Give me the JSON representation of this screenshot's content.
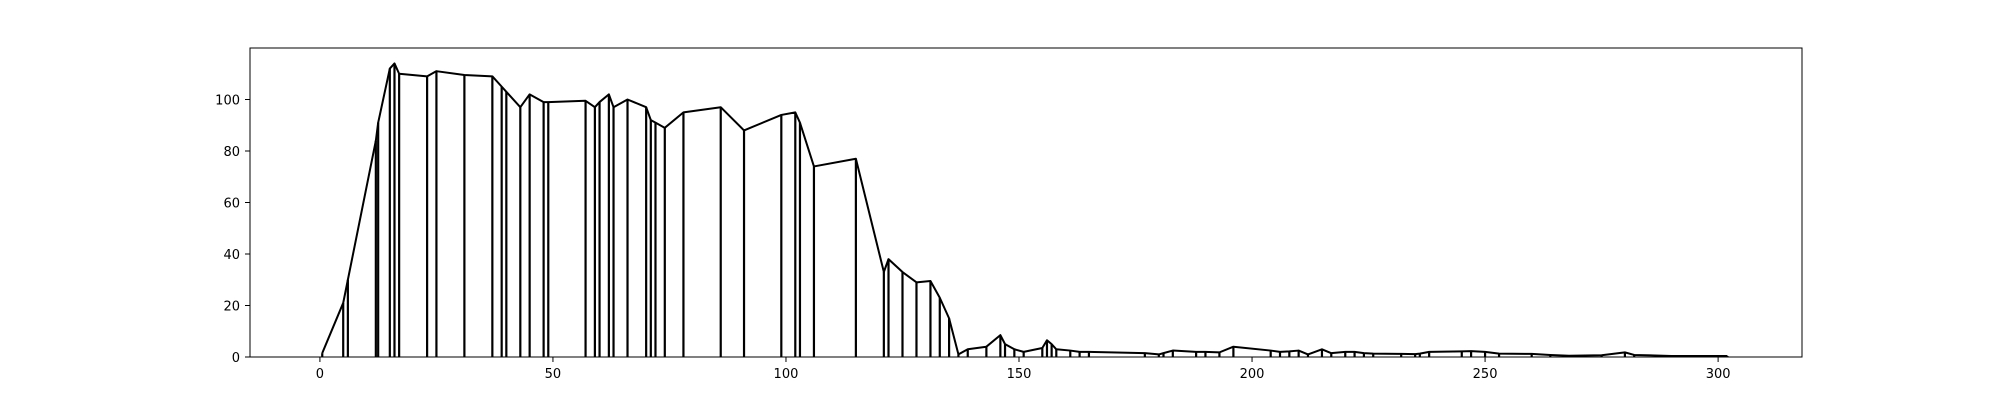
{
  "chart_data": {
    "type": "line",
    "title": "",
    "xlabel": "",
    "ylabel": "",
    "xlim": [
      -15,
      318
    ],
    "ylim": [
      0,
      120
    ],
    "grid": false,
    "legend": "none",
    "line_color": "#000000",
    "x_ticks": [
      0,
      50,
      100,
      150,
      200,
      250,
      300
    ],
    "y_ticks": [
      0,
      20,
      40,
      60,
      80,
      100
    ],
    "x_tick_labels": [
      "0",
      "50",
      "100",
      "150",
      "200",
      "250",
      "300"
    ],
    "y_tick_labels": [
      "0",
      "20",
      "40",
      "60",
      "80",
      "100"
    ],
    "series": [
      {
        "points": [
          [
            0.5,
            1.5
          ],
          [
            5,
            21
          ],
          [
            6,
            30
          ],
          [
            12,
            84
          ],
          [
            12.5,
            91
          ],
          [
            15,
            112
          ],
          [
            16,
            114
          ],
          [
            17,
            110
          ],
          [
            23,
            109
          ],
          [
            25,
            111
          ],
          [
            31,
            109.5
          ],
          [
            37,
            109
          ],
          [
            39,
            105
          ],
          [
            40,
            103
          ],
          [
            43,
            97
          ],
          [
            45,
            102
          ],
          [
            48,
            99
          ],
          [
            49,
            99
          ],
          [
            57,
            99.5
          ],
          [
            59,
            97
          ],
          [
            60,
            99
          ],
          [
            62,
            102
          ],
          [
            63,
            97
          ],
          [
            66,
            100
          ],
          [
            70,
            97
          ],
          [
            71,
            92
          ],
          [
            72,
            91
          ],
          [
            74,
            89
          ],
          [
            78,
            95
          ],
          [
            86,
            97
          ],
          [
            91,
            88
          ],
          [
            99,
            94
          ],
          [
            102,
            95
          ],
          [
            103,
            91
          ],
          [
            106,
            74
          ],
          [
            115,
            77
          ],
          [
            121,
            33
          ],
          [
            122,
            38
          ],
          [
            125,
            33
          ],
          [
            128,
            29
          ],
          [
            131,
            29.5
          ],
          [
            133,
            23
          ],
          [
            135,
            15
          ],
          [
            137,
            1
          ],
          [
            139,
            3
          ],
          [
            143,
            4
          ],
          [
            146,
            8.5
          ],
          [
            147,
            5
          ],
          [
            149,
            3
          ],
          [
            151,
            2
          ],
          [
            155,
            3.5
          ],
          [
            156,
            6.5
          ],
          [
            157,
            5
          ],
          [
            158,
            3
          ],
          [
            161,
            2.5
          ],
          [
            163,
            2
          ],
          [
            165,
            2
          ],
          [
            177,
            1.5
          ],
          [
            180,
            1
          ],
          [
            181,
            1.5
          ],
          [
            183,
            2.5
          ],
          [
            188,
            2
          ],
          [
            190,
            2
          ],
          [
            193,
            1.8
          ],
          [
            196,
            4
          ],
          [
            204,
            2.5
          ],
          [
            206,
            2
          ],
          [
            208,
            2.2
          ],
          [
            210,
            2.5
          ],
          [
            212,
            1
          ],
          [
            215,
            3
          ],
          [
            217,
            1.5
          ],
          [
            220,
            2
          ],
          [
            222,
            2
          ],
          [
            224,
            1.5
          ],
          [
            226,
            1.3
          ],
          [
            232,
            1.2
          ],
          [
            235,
            1.1
          ],
          [
            236,
            1.3
          ],
          [
            238,
            2
          ],
          [
            245,
            2.2
          ],
          [
            247,
            2.3
          ],
          [
            250,
            2
          ],
          [
            253,
            1.3
          ],
          [
            260,
            1.2
          ],
          [
            264,
            0.8
          ],
          [
            268,
            0.5
          ],
          [
            275,
            0.7
          ],
          [
            280,
            1.8
          ],
          [
            282,
            0.8
          ],
          [
            290,
            0.4
          ],
          [
            302,
            0.4
          ]
        ]
      }
    ]
  }
}
